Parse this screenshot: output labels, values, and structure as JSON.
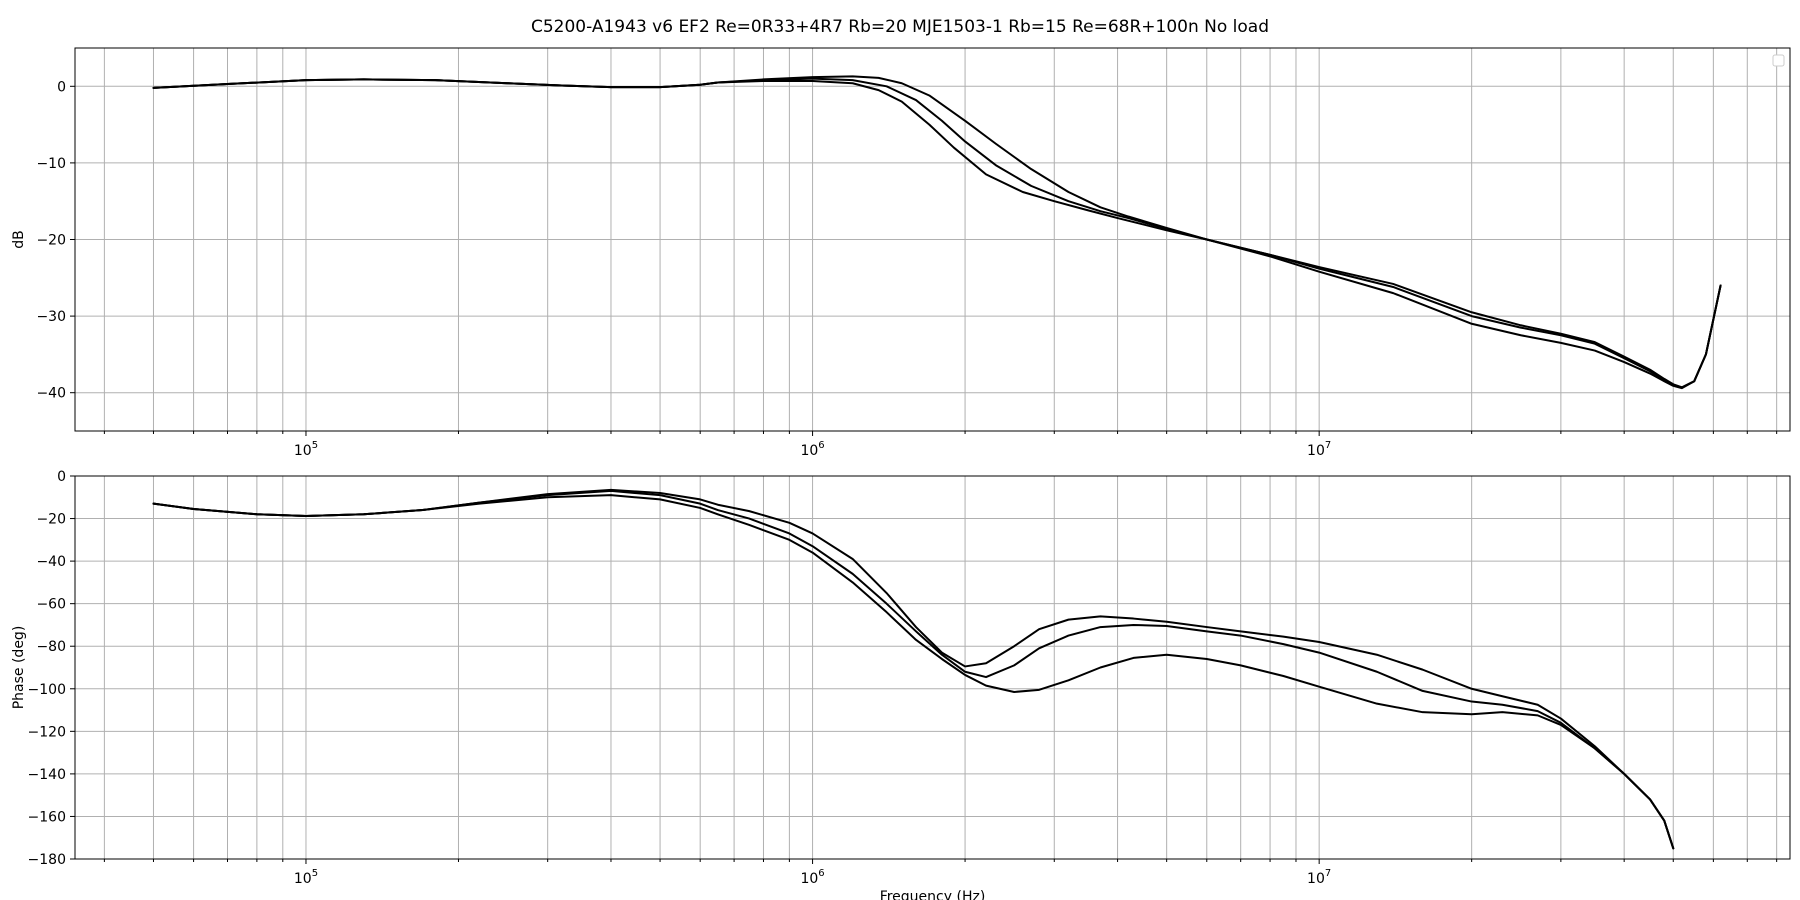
{
  "colors": {
    "series": "#000000",
    "grid": "#b0b0b0",
    "background": "#ffffff"
  },
  "figure": {
    "title": "C5200-A1943 v6 EF2 Re=0R33+4R7 Rb=20 MJE1503-1 Rb=15 Re=68R+100n No load"
  },
  "chart_data": [
    {
      "type": "line",
      "id": "magnitude",
      "title": "",
      "xlabel": "",
      "ylabel": "dB",
      "xscale": "log",
      "xlim": [
        35000,
        85000000
      ],
      "ylim": [
        -45,
        5
      ],
      "yticks": [
        0,
        -10,
        -20,
        -30,
        -40
      ],
      "ytick_labels": [
        "0",
        "−10",
        "−20",
        "−30",
        "−40"
      ],
      "xticks": [
        100000,
        1000000,
        10000000
      ],
      "xtick_labels": [
        [
          "10",
          "5"
        ],
        [
          "10",
          "6"
        ],
        [
          "10",
          "7"
        ]
      ],
      "grid": true,
      "legend": "top-right",
      "series": [
        {
          "x": [
            50000,
            70000,
            100000,
            130000,
            180000,
            250000,
            320000,
            400000,
            500000,
            600000,
            650000,
            800000,
            1000000,
            1200000,
            1350000,
            1500000,
            1700000,
            1900000,
            2200000,
            2600000,
            3000000,
            3500000,
            4000000,
            5000000,
            6000000,
            8000000,
            10000000,
            14000000,
            20000000,
            25000000,
            30000000,
            35000000,
            40000000,
            45000000,
            48000000,
            50000000,
            52000000,
            55000000,
            58000000,
            62000000
          ],
          "y": [
            -0.2,
            0.3,
            0.8,
            0.9,
            0.8,
            0.4,
            0.1,
            -0.1,
            -0.1,
            0.2,
            0.5,
            0.7,
            0.7,
            0.4,
            -0.5,
            -2,
            -5,
            -8,
            -11.5,
            -13.8,
            -15,
            -16.2,
            -17.2,
            -18.8,
            -20,
            -22,
            -23.8,
            -26.2,
            -30,
            -31.5,
            -32.5,
            -33.6,
            -35.5,
            -37.2,
            -38.3,
            -39,
            -39.3,
            -38.5,
            -35,
            -26
          ]
        },
        {
          "x": [
            50000,
            70000,
            100000,
            130000,
            180000,
            250000,
            320000,
            400000,
            500000,
            600000,
            650000,
            800000,
            1000000,
            1200000,
            1400000,
            1600000,
            1800000,
            2000000,
            2300000,
            2700000,
            3200000,
            3700000,
            4200000,
            5000000,
            6000000,
            8000000,
            10000000,
            14000000,
            20000000,
            25000000,
            30000000,
            35000000,
            40000000,
            45000000,
            48000000,
            50000000,
            52000000,
            55000000,
            58000000,
            62000000
          ],
          "y": [
            -0.2,
            0.3,
            0.8,
            0.9,
            0.8,
            0.4,
            0.1,
            -0.1,
            -0.1,
            0.2,
            0.5,
            0.8,
            1,
            0.8,
            0,
            -1.8,
            -4.5,
            -7.2,
            -10.3,
            -13,
            -15,
            -16.3,
            -17.2,
            -18.6,
            -20,
            -22,
            -23.6,
            -25.8,
            -29.5,
            -31.2,
            -32.3,
            -33.4,
            -35.3,
            -37,
            -38.2,
            -38.9,
            -39.3,
            -38.5,
            -35,
            -26
          ]
        },
        {
          "x": [
            50000,
            70000,
            100000,
            130000,
            180000,
            250000,
            320000,
            400000,
            500000,
            600000,
            650000,
            800000,
            1000000,
            1200000,
            1350000,
            1500000,
            1700000,
            2000000,
            2300000,
            2700000,
            3200000,
            3700000,
            4200000,
            5000000,
            6000000,
            8000000,
            10000000,
            14000000,
            20000000,
            25000000,
            30000000,
            35000000,
            40000000,
            45000000,
            48000000,
            50000000,
            52000000,
            55000000,
            58000000,
            62000000
          ],
          "y": [
            -0.2,
            0.3,
            0.8,
            0.9,
            0.8,
            0.4,
            0.1,
            -0.1,
            -0.1,
            0.2,
            0.5,
            0.9,
            1.2,
            1.3,
            1.1,
            0.4,
            -1.2,
            -4.5,
            -7.5,
            -10.8,
            -13.8,
            -15.8,
            -17,
            -18.5,
            -20,
            -22.2,
            -24.2,
            -27,
            -31,
            -32.5,
            -33.5,
            -34.5,
            -36,
            -37.5,
            -38.5,
            -39.1,
            -39.4,
            -38.5,
            -35,
            -26
          ]
        }
      ]
    },
    {
      "type": "line",
      "id": "phase",
      "title": "",
      "xlabel": "Frequency (Hz)",
      "ylabel": "Phase (deg)",
      "xscale": "log",
      "xlim": [
        35000,
        85000000
      ],
      "ylim": [
        -180,
        0
      ],
      "yticks": [
        0,
        -20,
        -40,
        -60,
        -80,
        -100,
        -120,
        -140,
        -160,
        -180
      ],
      "ytick_labels": [
        "0",
        "−20",
        "−40",
        "−60",
        "−80",
        "−100",
        "−120",
        "−140",
        "−160",
        "−180"
      ],
      "xticks": [
        100000,
        1000000,
        10000000
      ],
      "xtick_labels": [
        [
          "10",
          "5"
        ],
        [
          "10",
          "6"
        ],
        [
          "10",
          "7"
        ]
      ],
      "grid": true,
      "series": [
        {
          "x": [
            50000,
            60000,
            80000,
            100000,
            130000,
            170000,
            220000,
            300000,
            400000,
            500000,
            600000,
            650000,
            750000,
            900000,
            1000000,
            1200000,
            1400000,
            1600000,
            1800000,
            2000000,
            2200000,
            2500000,
            2800000,
            3200000,
            3700000,
            4300000,
            5000000,
            6000000,
            7000000,
            8500000,
            10000000,
            13000000,
            16000000,
            20000000,
            23000000,
            27000000,
            30000000,
            35000000,
            40000000,
            45000000,
            48000000,
            50000000
          ],
          "y": [
            -13,
            -15.5,
            -18,
            -18.8,
            -18,
            -16,
            -13,
            -10,
            -9,
            -11,
            -15,
            -18,
            -23,
            -30,
            -36,
            -50,
            -64,
            -77,
            -86,
            -93.5,
            -98.5,
            -101.5,
            -100.5,
            -96,
            -90,
            -85.5,
            -84,
            -86,
            -89,
            -94,
            -99,
            -107,
            -111,
            -112,
            -111,
            -112.5,
            -117,
            -128,
            -140,
            -152,
            -162,
            -175
          ]
        },
        {
          "x": [
            50000,
            60000,
            80000,
            100000,
            130000,
            170000,
            220000,
            300000,
            400000,
            500000,
            600000,
            650000,
            750000,
            900000,
            1000000,
            1200000,
            1400000,
            1600000,
            1800000,
            2000000,
            2200000,
            2500000,
            2800000,
            3200000,
            3700000,
            4300000,
            5000000,
            6000000,
            7000000,
            8500000,
            10000000,
            13000000,
            16000000,
            20000000,
            23000000,
            27000000,
            30000000,
            35000000,
            40000000,
            45000000,
            48000000,
            50000000
          ],
          "y": [
            -13,
            -15.5,
            -18,
            -18.8,
            -18,
            -16,
            -12.5,
            -9,
            -7,
            -9,
            -13,
            -16,
            -20,
            -27,
            -33,
            -46,
            -60,
            -73,
            -84,
            -92,
            -94.5,
            -89,
            -81,
            -75,
            -71,
            -70,
            -70.5,
            -73,
            -75,
            -79,
            -83,
            -92,
            -101,
            -106,
            -107.5,
            -110.5,
            -116,
            -128,
            -140,
            -152,
            -162,
            -175
          ]
        },
        {
          "x": [
            50000,
            60000,
            80000,
            100000,
            130000,
            170000,
            220000,
            300000,
            400000,
            500000,
            600000,
            650000,
            750000,
            900000,
            1000000,
            1200000,
            1400000,
            1600000,
            1800000,
            2000000,
            2200000,
            2500000,
            2800000,
            3200000,
            3700000,
            4300000,
            5000000,
            6000000,
            7000000,
            8500000,
            10000000,
            13000000,
            16000000,
            20000000,
            23000000,
            27000000,
            30000000,
            35000000,
            40000000,
            45000000,
            48000000,
            50000000
          ],
          "y": [
            -13,
            -15.5,
            -18,
            -18.8,
            -18,
            -16,
            -12.5,
            -8.5,
            -6.5,
            -8,
            -11,
            -13.5,
            -16.5,
            -22,
            -27,
            -39,
            -55,
            -71,
            -83,
            -89.5,
            -88,
            -80,
            -72,
            -67.5,
            -66,
            -67,
            -68.5,
            -71,
            -73,
            -75.5,
            -78,
            -84,
            -91,
            -100,
            -103.5,
            -107.5,
            -114,
            -127,
            -140,
            -152,
            -162,
            -175
          ]
        }
      ]
    }
  ]
}
